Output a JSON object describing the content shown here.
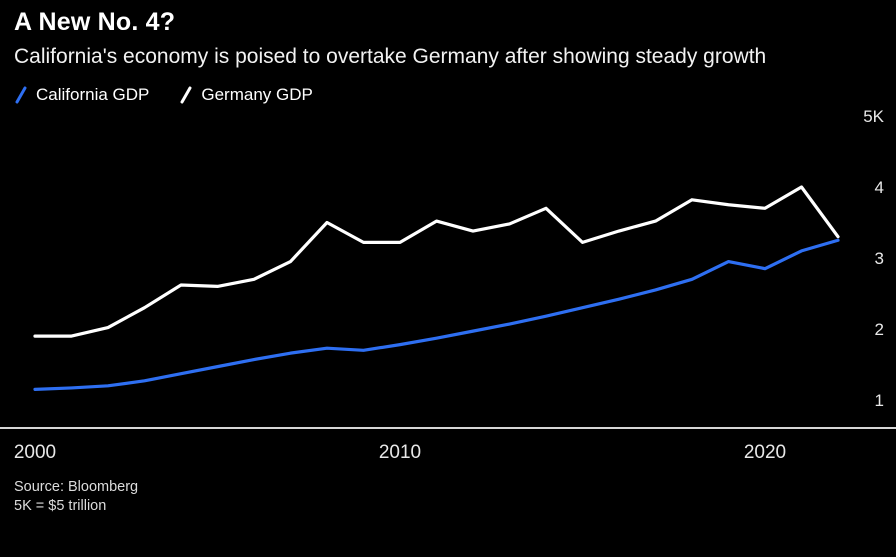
{
  "header": {
    "title": "A New No. 4?",
    "subtitle": "California's economy is poised to overtake Germany after showing steady growth"
  },
  "legend": {
    "items": [
      {
        "label": "California GDP",
        "color": "#2e6ff2"
      },
      {
        "label": "Germany GDP",
        "color": "#ffffff"
      }
    ]
  },
  "footer": {
    "source": "Source: Bloomberg",
    "note": "5K = $5 trillion"
  },
  "colors": {
    "background": "#000000",
    "axis_line": "#d6d6d6",
    "tick_text": "#e8e8e8",
    "california_blue": "#2e6ff2",
    "germany_white": "#ffffff"
  },
  "chart_data": {
    "type": "line",
    "title": "A New No. 4?",
    "subtitle": "California's economy is poised to overtake Germany after showing steady growth",
    "xlabel": "",
    "ylabel": "",
    "unit_note": "5K = $5 trillion (values in $ thousands of billions)",
    "grid": false,
    "legend_position": "top-left",
    "x": [
      2000,
      2001,
      2002,
      2003,
      2004,
      2005,
      2006,
      2007,
      2008,
      2009,
      2010,
      2011,
      2012,
      2013,
      2014,
      2015,
      2016,
      2017,
      2018,
      2019,
      2020,
      2021,
      2022
    ],
    "x_ticks": [
      2000,
      2010,
      2020
    ],
    "ylim": [
      0.6,
      5.2
    ],
    "y_ticks": [
      {
        "value": 5,
        "label": "5K"
      },
      {
        "value": 4,
        "label": "4"
      },
      {
        "value": 3,
        "label": "3"
      },
      {
        "value": 2,
        "label": "2"
      },
      {
        "value": 1,
        "label": "1"
      }
    ],
    "series": [
      {
        "name": "Germany GDP",
        "color": "#ffffff",
        "values": [
          1.9,
          1.9,
          2.02,
          2.3,
          2.62,
          2.6,
          2.7,
          2.95,
          3.5,
          3.22,
          3.22,
          3.52,
          3.38,
          3.48,
          3.7,
          3.22,
          3.38,
          3.52,
          3.82,
          3.75,
          3.7,
          4.0,
          3.3
        ]
      },
      {
        "name": "California GDP",
        "color": "#2e6ff2",
        "values": [
          1.15,
          1.17,
          1.2,
          1.27,
          1.37,
          1.47,
          1.57,
          1.66,
          1.73,
          1.7,
          1.78,
          1.87,
          1.97,
          2.07,
          2.18,
          2.3,
          2.42,
          2.55,
          2.7,
          2.95,
          2.85,
          3.1,
          3.25
        ]
      }
    ]
  }
}
